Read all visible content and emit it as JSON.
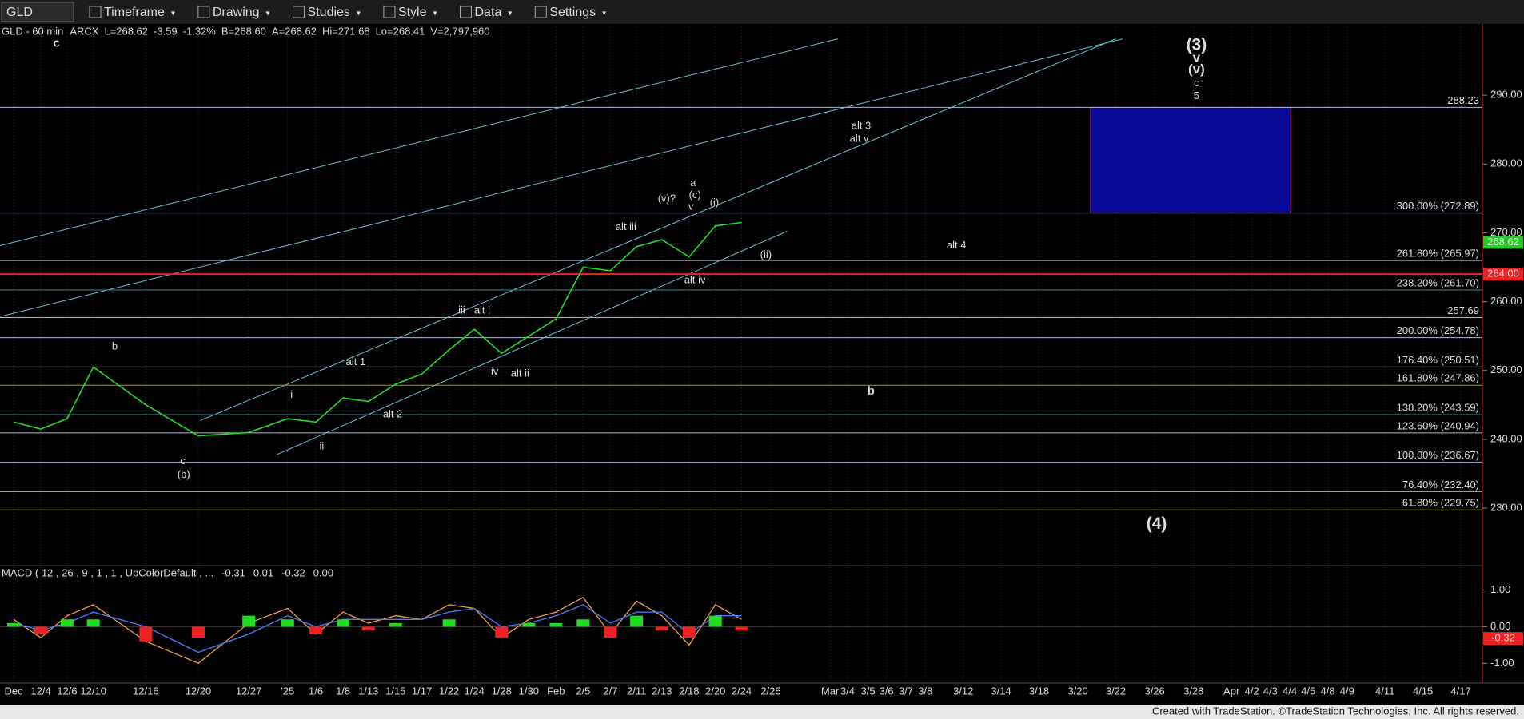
{
  "toolbar": {
    "symbol": "GLD",
    "items": [
      "Timeframe",
      "Drawing",
      "Studies",
      "Style",
      "Data",
      "Settings"
    ]
  },
  "chart_data": {
    "type": "line",
    "header": [
      {
        "text": "GLD - 60 min",
        "color": "#ffffff"
      },
      {
        "text": "ARCX",
        "color": "#ffffff"
      },
      {
        "text": "L=268.62",
        "color": "#ffffff"
      },
      {
        "text": "-3.59",
        "color": "#ff4040"
      },
      {
        "text": "-1.32%",
        "color": "#ff4040"
      },
      {
        "text": "B=268.60",
        "color": "#ffffff"
      },
      {
        "text": "A=268.62",
        "color": "#ffffff"
      },
      {
        "text": "Hi=271.68",
        "color": "#ffffff"
      },
      {
        "text": "Lo=268.41",
        "color": "#ffffff"
      },
      {
        "text": "V=2,797,960",
        "color": "#ffffff"
      }
    ],
    "categories": [
      "Dec",
      "12/4",
      "12/6",
      "12/10",
      "12/16",
      "12/20",
      "12/27",
      "'25",
      "1/6",
      "1/8",
      "1/13",
      "1/15",
      "1/17",
      "1/22",
      "1/24",
      "1/28",
      "1/30",
      "Feb",
      "2/5",
      "2/7",
      "2/11",
      "2/13",
      "2/18",
      "2/20",
      "2/24",
      "2/26",
      "Mar",
      "3/4",
      "3/5",
      "3/6",
      "3/7",
      "3/8",
      "3/12",
      "3/14",
      "3/18",
      "3/20",
      "3/22",
      "3/26",
      "3/28",
      "Apr",
      "4/2",
      "4/3",
      "4/4",
      "4/5",
      "4/8",
      "4/9",
      "4/11",
      "4/15",
      "4/17"
    ],
    "values": [
      242.5,
      241.5,
      243,
      250.5,
      245,
      240.5,
      241,
      243,
      242.5,
      246,
      245.5,
      248,
      249.5,
      253,
      256,
      252.5,
      255,
      257.5,
      265,
      264.5,
      268,
      269,
      266.5,
      271,
      271.5,
      null,
      null,
      null,
      null,
      null,
      null,
      null,
      null,
      null,
      null,
      null,
      null,
      null,
      null,
      null,
      null,
      null,
      null,
      null,
      null,
      null,
      null,
      null,
      null
    ],
    "color": "#22dd22",
    "ylim": [
      222,
      300
    ],
    "yticks": [
      {
        "value": 230,
        "label": "230.00"
      },
      {
        "value": 240,
        "label": "240.00"
      },
      {
        "value": 250,
        "label": "250.00"
      },
      {
        "value": 260,
        "label": "260.00"
      },
      {
        "value": 270,
        "label": "270.00"
      },
      {
        "value": 280,
        "label": "280.00"
      },
      {
        "value": 290,
        "label": "290.00"
      }
    ],
    "last_price": {
      "value": 268.62,
      "label": "268.62"
    },
    "levels": [
      {
        "value": 288.23,
        "label": "288.23",
        "color": "#b0b8d0"
      },
      {
        "value": 272.89,
        "label": "300.00% (272.89)",
        "color": "#b0b8d0"
      },
      {
        "value": 265.97,
        "label": "261.80% (265.97)",
        "color": "#b0b8d0"
      },
      {
        "value": 264,
        "label": "264.00",
        "color": "#ee2222",
        "tag": true
      },
      {
        "value": 261.7,
        "label": "238.20% (261.70)",
        "color": "#3a8a8a"
      },
      {
        "value": 257.69,
        "label": "257.69",
        "color": "#b0b8d0"
      },
      {
        "value": 254.78,
        "label": "200.00% (254.78)",
        "color": "#b0b8d0"
      },
      {
        "value": 250.51,
        "label": "176.40% (250.51)",
        "color": "#b0b8d0"
      },
      {
        "value": 247.86,
        "label": "161.80% (247.86)",
        "color": "#9a9a40"
      },
      {
        "value": 243.59,
        "label": "138.20% (243.59)",
        "color": "#3a8a8a"
      },
      {
        "value": 240.94,
        "label": "123.60% (240.94)",
        "color": "#b0b8d0"
      },
      {
        "value": 236.67,
        "label": "100.00% (236.67)",
        "color": "#b0b8d0"
      },
      {
        "value": 232.4,
        "label": "76.40% (232.40)",
        "color": "#b0b8d0"
      },
      {
        "value": 229.75,
        "label": "61.80% (229.75)",
        "color": "#9a9a40"
      }
    ],
    "annotations": [
      {
        "text": "c",
        "color": "#22cc22"
      },
      {
        "text": "b",
        "color": "#22cc22"
      },
      {
        "text": "c",
        "color": "#22cc22"
      },
      {
        "text": "(b)",
        "color": "#22cc22"
      },
      {
        "text": "i",
        "color": "#dddddd"
      },
      {
        "text": "ii",
        "color": "#dddddd"
      },
      {
        "text": "iii",
        "color": "#5fc7d0"
      },
      {
        "text": "iv",
        "color": "#dddddd"
      },
      {
        "text": "alt i",
        "color": "#5fc7d0"
      },
      {
        "text": "alt ii",
        "color": "#5fc7d0"
      },
      {
        "text": "alt 1",
        "color": "#5fc7d0"
      },
      {
        "text": "alt 2",
        "color": "#5fc7d0"
      },
      {
        "text": "alt iii",
        "color": "#5fc7d0"
      },
      {
        "text": "(v)?",
        "color": "#e8d23a"
      },
      {
        "text": "a",
        "color": "#22cc22"
      },
      {
        "text": "(c)",
        "color": "#22cc22"
      },
      {
        "text": "v",
        "color": "#dddddd"
      },
      {
        "text": "(i)",
        "color": "#5fc7d0"
      },
      {
        "text": "(ii)",
        "color": "#5fc7d0"
      },
      {
        "text": "alt iv",
        "color": "#5fc7d0"
      },
      {
        "text": "alt 3",
        "color": "#5fc7d0"
      },
      {
        "text": "alt v",
        "color": "#5fc7d0"
      },
      {
        "text": "alt 4",
        "color": "#5fc7d0"
      },
      {
        "text": "b",
        "color": "#22cc22"
      },
      {
        "text": "(3)",
        "color": "#22cc22"
      },
      {
        "text": "v",
        "color": "#22cc22"
      },
      {
        "text": "(v)",
        "color": "#22cc22"
      },
      {
        "text": "c",
        "color": "#22cc22"
      },
      {
        "text": "5",
        "color": "#5fc7d0"
      },
      {
        "text": "(4)",
        "color": "#e8d23a"
      }
    ],
    "macd": {
      "type": "line",
      "title": "MACD ( 12 , 26 , 9 , 1 , 1 , UpColorDefault , ...",
      "readouts": [
        {
          "text": "-0.31",
          "color": "#f0a040"
        },
        {
          "text": "0.01",
          "color": "#4a7cff"
        },
        {
          "text": "-0.32",
          "color": "#ff3030"
        },
        {
          "text": "0.00",
          "color": "#22dd22"
        }
      ],
      "series": [
        {
          "color": "#f0a040",
          "values": [
            0.2,
            -0.3,
            0.3,
            0.6,
            -0.4,
            -1.0,
            0.1,
            0.5,
            -0.2,
            0.4,
            0.1,
            0.3,
            0.2,
            0.6,
            0.5,
            -0.3,
            0.2,
            0.4,
            0.8,
            -0.2,
            0.7,
            0.3,
            -0.5,
            0.6,
            0.2,
            null,
            null,
            null,
            null,
            null,
            null,
            null,
            null,
            null,
            null,
            null,
            null,
            null,
            null,
            null,
            null,
            null,
            null,
            null,
            null,
            null,
            null,
            null,
            null
          ]
        },
        {
          "color": "#4a7cff",
          "values": [
            0.1,
            -0.1,
            0.1,
            0.4,
            0.0,
            -0.7,
            -0.2,
            0.3,
            0.0,
            0.2,
            0.2,
            0.2,
            0.2,
            0.4,
            0.5,
            0.0,
            0.1,
            0.3,
            0.6,
            0.1,
            0.4,
            0.4,
            -0.2,
            0.3,
            0.3,
            null,
            null,
            null,
            null,
            null,
            null,
            null,
            null,
            null,
            null,
            null,
            null,
            null,
            null,
            null,
            null,
            null,
            null,
            null,
            null,
            null,
            null,
            null,
            null
          ]
        },
        {
          "histogram": true,
          "up_color": "#22dd22",
          "down_color": "#ee2222",
          "values": [
            0.1,
            -0.2,
            0.2,
            0.2,
            -0.4,
            -0.3,
            0.3,
            0.2,
            -0.2,
            0.2,
            -0.1,
            0.1,
            0.0,
            0.2,
            0.0,
            -0.3,
            0.1,
            0.1,
            0.2,
            -0.3,
            0.3,
            -0.1,
            -0.3,
            0.3,
            -0.1,
            null,
            null,
            null,
            null,
            null,
            null,
            null,
            null,
            null,
            null,
            null,
            null,
            null,
            null,
            null,
            null,
            null,
            null,
            null,
            null,
            null,
            null,
            null,
            null
          ]
        }
      ],
      "ylim": [
        -1.45,
        1.6
      ],
      "yticks": [
        {
          "value": 1,
          "label": "1.00"
        },
        {
          "value": 0,
          "label": "0.00"
        },
        {
          "value": -1,
          "label": "-1.00"
        }
      ],
      "last_value": {
        "value": -0.32,
        "label": "-0.32"
      }
    }
  },
  "footer": "Created with TradeStation. ©TradeStation Technologies, Inc. All rights reserved."
}
